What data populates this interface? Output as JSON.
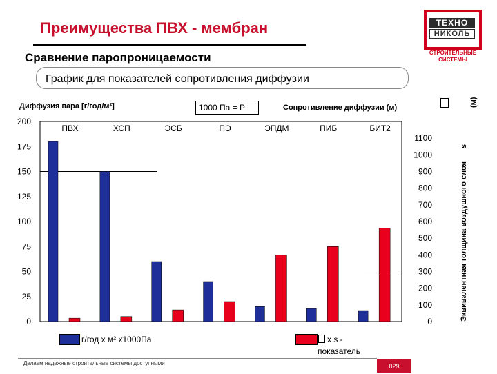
{
  "page": {
    "title": "Преимущества ПВХ - мембран",
    "subtitle": "Сравнение паропроницаемости",
    "footer": "Делаем надежные строительные системы доступными",
    "page_number": "029"
  },
  "logo": {
    "line1": "ТЕХНО",
    "line2": "НИКОЛЬ",
    "tagline": "СТРОИТЕЛЬНЫЕ СИСТЕМЫ",
    "color": "#d0021b"
  },
  "chart_data": {
    "type": "bar",
    "title": "График для показателей сопротивления диффузии",
    "categories": [
      "ПВХ",
      "ХСП",
      "ЭСБ",
      "ПЭ",
      "ЭПДМ",
      "ПИБ",
      "БИТ2"
    ],
    "series": [
      {
        "name": "г/год х м² х1000Па",
        "axis": "left",
        "color": "#1f2f9a",
        "values": [
          180,
          150,
          60,
          40,
          15,
          13,
          11
        ]
      },
      {
        "name": "x s - показатель",
        "axis": "right",
        "color": "#e8001c",
        "values": [
          20,
          30,
          70,
          120,
          400,
          450,
          560
        ]
      }
    ],
    "left_axis": {
      "label": "Диффузия пара [г/год/м²]",
      "ylim": [
        0,
        200
      ],
      "ticks": [
        0,
        25,
        50,
        75,
        100,
        125,
        150,
        175,
        200
      ]
    },
    "right_axis": {
      "label": "Сопротивление диффузии (м)",
      "side_label": "Эквивалентная толщина воздушного слоя",
      "side_label_2": "s",
      "side_label_3": "(м)",
      "ylim": [
        0,
        1200
      ],
      "ticks": [
        0,
        100,
        200,
        300,
        400,
        500,
        600,
        700,
        800,
        900,
        1000,
        1100
      ]
    },
    "annotation": "1000 Па = Р",
    "legend": {
      "blue_label": "г/год х м² х1000Па",
      "red_label": "x s -",
      "red_label_2": "показатель",
      "placement": "bottom"
    }
  }
}
